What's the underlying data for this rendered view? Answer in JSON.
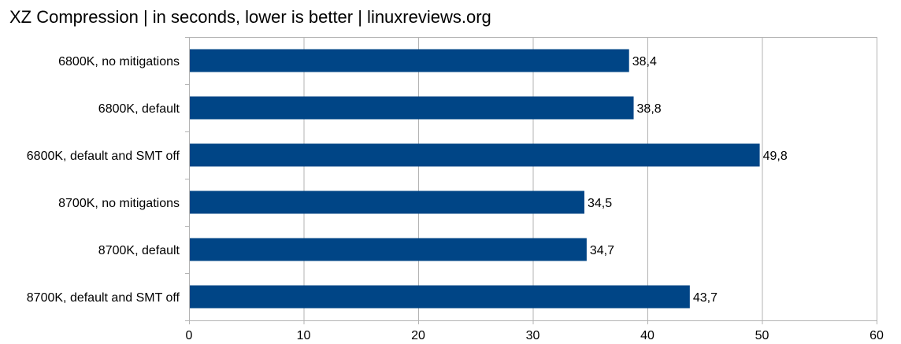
{
  "chart_data": {
    "type": "bar",
    "orientation": "horizontal",
    "title": "XZ Compression | in seconds, lower is better | linuxreviews.org",
    "categories": [
      "6800K, no mitigations",
      "6800K, default",
      "6800K, default and SMT off",
      "8700K, no mitigations",
      "8700K, default",
      "8700K, default and SMT off"
    ],
    "values": [
      38.4,
      38.8,
      49.8,
      34.5,
      34.7,
      43.7
    ],
    "value_labels": [
      "38,4",
      "38,8",
      "49,8",
      "34,5",
      "34,7",
      "43,7"
    ],
    "xlim": [
      0,
      60
    ],
    "x_ticks": [
      0,
      10,
      20,
      30,
      40,
      50,
      60
    ],
    "grid": true,
    "legend": "none",
    "bar_color": "#004586",
    "grid_color": "#b3b3b3"
  }
}
